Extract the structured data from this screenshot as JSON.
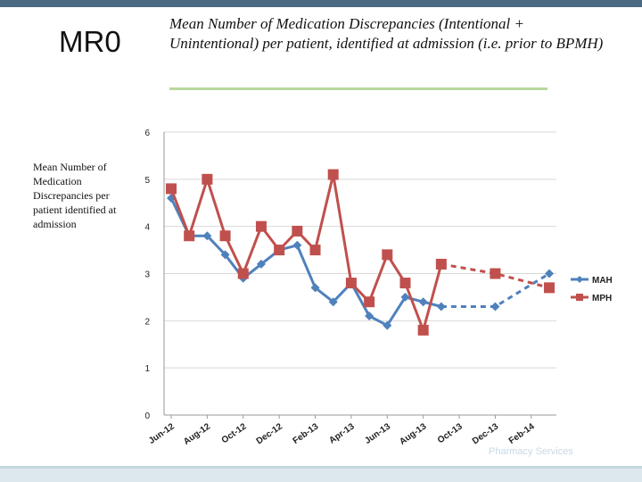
{
  "slide": {
    "code": "MR0",
    "title": "Mean Number of Medication Discrepancies (Intentional + Unintentional) per patient, identified at admission (i.e. prior to BPMH)",
    "side_label": "Mean Number of Medication Discrepancies per patient identified at admission",
    "colors": {
      "top_bar": "#4a6a82",
      "rule": "#b9d79e",
      "bottom_bar": "#dde8ee"
    }
  },
  "chart_data": {
    "type": "line",
    "title": "",
    "xlabel": "",
    "ylabel": "",
    "ylim": [
      0,
      6
    ],
    "yticks": [
      0,
      1,
      2,
      3,
      4,
      5,
      6
    ],
    "grid": true,
    "legend_position": "right",
    "x_tick_labels": [
      "Jun-12",
      "Aug-12",
      "Oct-12",
      "Dec-12",
      "Feb-13",
      "Apr-13",
      "Jun-13",
      "Aug-13",
      "Oct-13",
      "Dec-13",
      "Feb-14"
    ],
    "x_index_range": [
      0,
      21
    ],
    "series": [
      {
        "name": "MAH",
        "color": "#4f81bd",
        "marker": "diamond",
        "x": [
          0,
          1,
          2,
          3,
          4,
          5,
          6,
          7,
          8,
          9,
          10,
          11,
          12,
          13,
          14,
          15,
          18,
          21
        ],
        "values": [
          4.6,
          3.8,
          3.8,
          3.4,
          2.9,
          3.2,
          3.5,
          3.6,
          2.7,
          2.4,
          2.8,
          2.1,
          1.9,
          2.5,
          2.4,
          2.3,
          2.3,
          3.0
        ],
        "dashed_from_x": 15
      },
      {
        "name": "MPH",
        "color": "#c0504d",
        "marker": "square",
        "x": [
          0,
          1,
          2,
          3,
          4,
          5,
          6,
          7,
          8,
          9,
          10,
          11,
          12,
          13,
          14,
          15,
          18,
          21
        ],
        "values": [
          4.8,
          3.8,
          5.0,
          3.8,
          3.0,
          4.0,
          3.5,
          3.9,
          3.5,
          5.1,
          2.8,
          2.4,
          3.4,
          2.8,
          1.8,
          3.2,
          3.0,
          2.7
        ],
        "dashed_from_x": 15
      }
    ]
  },
  "watermark": "Pharmacy Services"
}
